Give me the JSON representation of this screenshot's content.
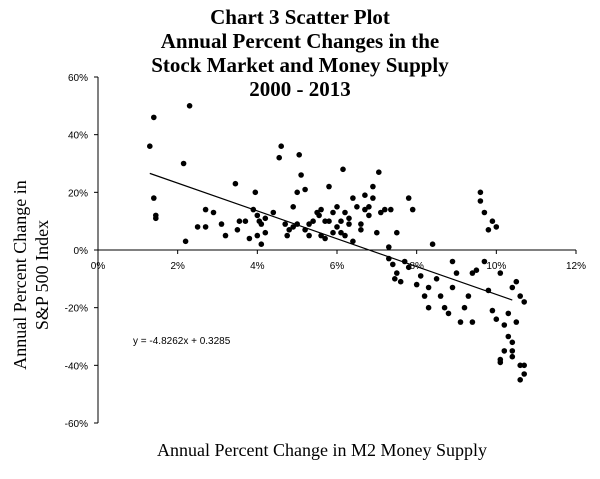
{
  "chart_data": {
    "type": "scatter",
    "title_lines": [
      "Chart 3 Scatter Plot",
      "Annual Percent Changes in the",
      "Stock Market and Money Supply",
      "2000 - 2013"
    ],
    "xlabel": "Annual Percent Change in M2 Money Supply",
    "ylabel_lines": [
      "Annual Percent Change in",
      "S&P 500 Index"
    ],
    "xlim": [
      0,
      0.12
    ],
    "ylim": [
      -0.6,
      0.6
    ],
    "x_ticks": [
      0,
      0.02,
      0.04,
      0.06,
      0.08,
      0.1,
      0.12
    ],
    "x_tick_labels": [
      "0%",
      "2%",
      "4%",
      "6%",
      "8%",
      "10%",
      "12%"
    ],
    "y_ticks": [
      0.6,
      0.4,
      0.2,
      0,
      -0.2,
      -0.4,
      -0.6
    ],
    "y_tick_labels": [
      "60%",
      "40%",
      "20%",
      "0%",
      "-20%",
      "-40%",
      "-60%"
    ],
    "trendline": {
      "slope": -4.8262,
      "intercept": 0.3285,
      "x_range": [
        0.013,
        0.104
      ]
    },
    "equation_label": "y = -4.8262x + 0.3285",
    "points": [
      [
        0.013,
        0.36
      ],
      [
        0.014,
        0.46
      ],
      [
        0.014,
        0.18
      ],
      [
        0.0145,
        0.12
      ],
      [
        0.0145,
        0.11
      ],
      [
        0.0215,
        0.3
      ],
      [
        0.023,
        0.5
      ],
      [
        0.022,
        0.03
      ],
      [
        0.025,
        0.08
      ],
      [
        0.027,
        0.08
      ],
      [
        0.027,
        0.14
      ],
      [
        0.029,
        0.13
      ],
      [
        0.031,
        0.09
      ],
      [
        0.032,
        0.05
      ],
      [
        0.0345,
        0.23
      ],
      [
        0.035,
        0.07
      ],
      [
        0.0355,
        0.1
      ],
      [
        0.037,
        0.1
      ],
      [
        0.038,
        0.04
      ],
      [
        0.039,
        0.14
      ],
      [
        0.0395,
        0.2
      ],
      [
        0.04,
        0.12
      ],
      [
        0.04,
        0.05
      ],
      [
        0.0405,
        0.1
      ],
      [
        0.041,
        0.02
      ],
      [
        0.041,
        0.09
      ],
      [
        0.042,
        0.06
      ],
      [
        0.042,
        0.11
      ],
      [
        0.044,
        0.13
      ],
      [
        0.0455,
        0.32
      ],
      [
        0.046,
        0.36
      ],
      [
        0.047,
        0.09
      ],
      [
        0.0475,
        0.05
      ],
      [
        0.048,
        0.07
      ],
      [
        0.049,
        0.08
      ],
      [
        0.049,
        0.15
      ],
      [
        0.05,
        0.09
      ],
      [
        0.05,
        0.2
      ],
      [
        0.0505,
        0.33
      ],
      [
        0.051,
        0.26
      ],
      [
        0.052,
        0.07
      ],
      [
        0.052,
        0.21
      ],
      [
        0.053,
        0.09
      ],
      [
        0.053,
        0.05
      ],
      [
        0.054,
        0.1
      ],
      [
        0.055,
        0.13
      ],
      [
        0.0555,
        0.12
      ],
      [
        0.056,
        0.05
      ],
      [
        0.056,
        0.14
      ],
      [
        0.057,
        0.1
      ],
      [
        0.057,
        0.04
      ],
      [
        0.058,
        0.1
      ],
      [
        0.058,
        0.22
      ],
      [
        0.059,
        0.06
      ],
      [
        0.059,
        0.13
      ],
      [
        0.06,
        0.08
      ],
      [
        0.06,
        0.15
      ],
      [
        0.061,
        0.1
      ],
      [
        0.061,
        0.06
      ],
      [
        0.0615,
        0.28
      ],
      [
        0.062,
        0.05
      ],
      [
        0.062,
        0.13
      ],
      [
        0.063,
        0.11
      ],
      [
        0.063,
        0.09
      ],
      [
        0.064,
        0.03
      ],
      [
        0.064,
        0.18
      ],
      [
        0.065,
        0.15
      ],
      [
        0.066,
        0.07
      ],
      [
        0.066,
        0.09
      ],
      [
        0.067,
        0.14
      ],
      [
        0.067,
        0.19
      ],
      [
        0.068,
        0.12
      ],
      [
        0.068,
        0.15
      ],
      [
        0.069,
        0.22
      ],
      [
        0.069,
        0.18
      ],
      [
        0.07,
        0.06
      ],
      [
        0.0705,
        0.27
      ],
      [
        0.071,
        0.13
      ],
      [
        0.072,
        0.14
      ],
      [
        0.073,
        0.01
      ],
      [
        0.073,
        -0.03
      ],
      [
        0.0735,
        0.14
      ],
      [
        0.074,
        -0.05
      ],
      [
        0.0745,
        -0.1
      ],
      [
        0.075,
        0.06
      ],
      [
        0.075,
        -0.08
      ],
      [
        0.076,
        -0.11
      ],
      [
        0.077,
        -0.04
      ],
      [
        0.078,
        -0.06
      ],
      [
        0.079,
        0.14
      ],
      [
        0.078,
        0.18
      ],
      [
        0.08,
        -0.12
      ],
      [
        0.081,
        -0.09
      ],
      [
        0.082,
        -0.16
      ],
      [
        0.083,
        -0.2
      ],
      [
        0.083,
        -0.13
      ],
      [
        0.084,
        0.02
      ],
      [
        0.085,
        -0.1
      ],
      [
        0.086,
        -0.16
      ],
      [
        0.087,
        -0.2
      ],
      [
        0.088,
        -0.22
      ],
      [
        0.089,
        -0.13
      ],
      [
        0.089,
        -0.04
      ],
      [
        0.09,
        -0.08
      ],
      [
        0.091,
        -0.25
      ],
      [
        0.092,
        -0.2
      ],
      [
        0.093,
        -0.16
      ],
      [
        0.094,
        -0.25
      ],
      [
        0.094,
        -0.08
      ],
      [
        0.095,
        -0.07
      ],
      [
        0.096,
        0.2
      ],
      [
        0.096,
        0.17
      ],
      [
        0.097,
        0.13
      ],
      [
        0.097,
        -0.04
      ],
      [
        0.098,
        0.07
      ],
      [
        0.098,
        -0.14
      ],
      [
        0.099,
        0.1
      ],
      [
        0.099,
        -0.21
      ],
      [
        0.1,
        -0.24
      ],
      [
        0.1,
        0.08
      ],
      [
        0.101,
        -0.08
      ],
      [
        0.101,
        -0.38
      ],
      [
        0.101,
        -0.39
      ],
      [
        0.102,
        -0.26
      ],
      [
        0.102,
        -0.35
      ],
      [
        0.103,
        -0.3
      ],
      [
        0.104,
        -0.32
      ],
      [
        0.104,
        -0.35
      ],
      [
        0.104,
        -0.13
      ],
      [
        0.103,
        -0.22
      ],
      [
        0.104,
        -0.37
      ],
      [
        0.105,
        -0.25
      ],
      [
        0.105,
        -0.11
      ],
      [
        0.106,
        -0.16
      ],
      [
        0.106,
        -0.4
      ],
      [
        0.106,
        -0.45
      ],
      [
        0.107,
        -0.18
      ],
      [
        0.107,
        -0.4
      ],
      [
        0.107,
        -0.43
      ]
    ]
  }
}
